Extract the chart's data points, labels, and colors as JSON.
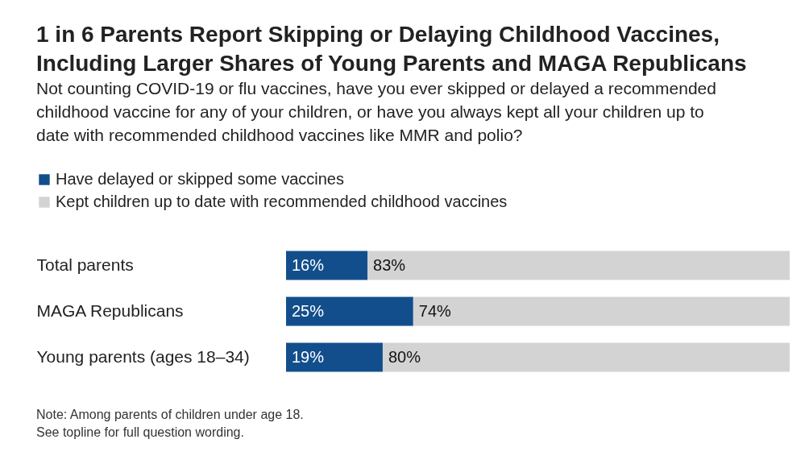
{
  "chart_data": {
    "type": "bar",
    "orientation": "horizontal",
    "stacked": true,
    "title": "1 in 6 Parents Report Skipping or Delaying Childhood Vaccines,\nIncluding Larger Shares of Young Parents and MAGA Republicans",
    "subtitle": "Not counting COVID-19 or flu vaccines, have you ever skipped or delayed a recommended\nchildhood vaccine for any of your children, or have you always kept all your children up to\ndate with recommended childhood vaccines like MMR and polio?",
    "categories": [
      "Total parents",
      "MAGA Republicans",
      "Young parents (ages 18–34)"
    ],
    "series": [
      {
        "name": "Have delayed or skipped some vaccines",
        "color": "#134e8c",
        "values": [
          16,
          25,
          19
        ],
        "value_labels": [
          "16%",
          "25%",
          "19%"
        ]
      },
      {
        "name": "Kept children up to date with recommended childhood vaccines",
        "color": "#d3d3d3",
        "values": [
          83,
          74,
          80
        ],
        "value_labels": [
          "83%",
          "74%",
          "80%"
        ]
      }
    ],
    "legend": "top",
    "annotations": [
      "Note: Among parents of children under age 18.",
      "See topline for full question wording."
    ]
  }
}
